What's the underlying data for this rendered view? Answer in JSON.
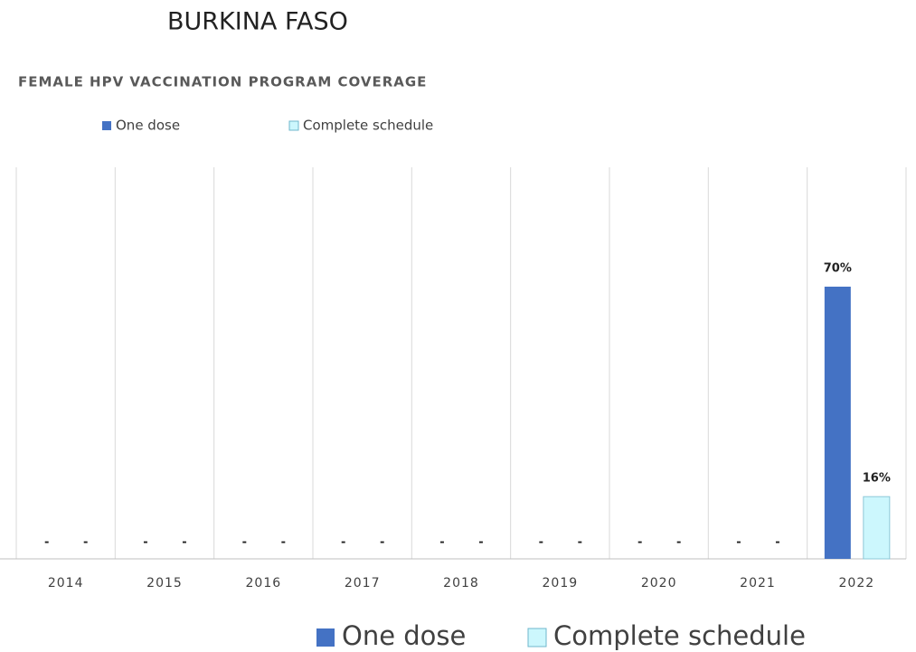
{
  "chart_data": {
    "type": "bar",
    "title": "BURKINA FASO",
    "subtitle": "FEMALE HPV VACCINATION PROGRAM COVERAGE",
    "categories": [
      "2014",
      "2015",
      "2016",
      "2017",
      "2018",
      "2019",
      "2020",
      "2021",
      "2022"
    ],
    "series": [
      {
        "name": "One dose",
        "color": "#4472c4",
        "values": [
          null,
          null,
          null,
          null,
          null,
          null,
          null,
          null,
          70
        ],
        "value_labels": [
          "-",
          "-",
          "-",
          "-",
          "-",
          "-",
          "-",
          "-",
          "70%"
        ]
      },
      {
        "name": "Complete schedule",
        "color": "#ccf7fd",
        "values": [
          null,
          null,
          null,
          null,
          null,
          null,
          null,
          null,
          16
        ],
        "value_labels": [
          "-",
          "-",
          "-",
          "-",
          "-",
          "-",
          "-",
          "-",
          "16%"
        ]
      }
    ],
    "ylim": [
      0,
      100
    ]
  }
}
